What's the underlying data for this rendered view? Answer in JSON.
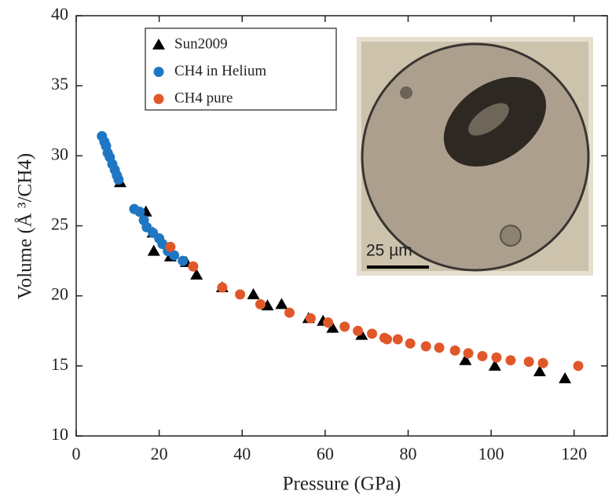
{
  "chart_data": {
    "type": "scatter",
    "xlabel": "Pressure (GPa)",
    "ylabel": "Volume (Å ³/CH4)",
    "inset_label": "25 µm",
    "xlim": [
      0,
      128
    ],
    "ylim": [
      10,
      40
    ],
    "xticks": [
      0,
      20,
      40,
      60,
      80,
      100,
      120
    ],
    "yticks": [
      10,
      15,
      20,
      25,
      30,
      35,
      40
    ],
    "legend": "upper left",
    "series": [
      {
        "name": "Sun2009",
        "color": "#000000",
        "marker": "triangle",
        "x": [
          10.6,
          16.8,
          18.5,
          18.7,
          22.7,
          26.5,
          29,
          35.2,
          42.7,
          46.1,
          49.5,
          56,
          59.5,
          61.8,
          68.8,
          93.8,
          100.9,
          111.7,
          117.8
        ],
        "values": [
          28.1,
          26.0,
          24.5,
          23.2,
          22.8,
          22.4,
          21.5,
          20.6,
          20.1,
          19.3,
          19.4,
          18.4,
          18.2,
          17.7,
          17.2,
          15.4,
          15.0,
          14.6,
          14.1
        ]
      },
      {
        "name": "CH4 in Helium",
        "color": "#1f77c4",
        "marker": "circle",
        "x": [
          6.2,
          6.8,
          7.2,
          7.6,
          8.1,
          8.7,
          9.3,
          9.8,
          10.2,
          14.0,
          15.3,
          16.3,
          17.0,
          18.5,
          20.0,
          20.8,
          22.1,
          23.6,
          25.7
        ],
        "values": [
          31.4,
          31.0,
          30.7,
          30.2,
          29.9,
          29.4,
          29.0,
          28.6,
          28.3,
          26.2,
          26.0,
          25.4,
          24.9,
          24.5,
          24.1,
          23.7,
          23.2,
          22.9,
          22.5
        ]
      },
      {
        "name": "CH4 pure",
        "color": "#e0582a",
        "marker": "circle",
        "x": [
          22.7,
          28.2,
          35.2,
          39.5,
          44.4,
          51.4,
          56.5,
          60.7,
          64.7,
          67.9,
          71.3,
          74.3,
          74.9,
          77.5,
          80.5,
          84.3,
          87.5,
          91.3,
          94.5,
          97.9,
          101.3,
          104.7,
          109.1,
          112.5,
          121
        ],
        "values": [
          23.5,
          22.1,
          20.6,
          20.1,
          19.4,
          18.8,
          18.4,
          18.1,
          17.8,
          17.5,
          17.3,
          17.0,
          16.9,
          16.9,
          16.6,
          16.4,
          16.3,
          16.1,
          15.9,
          15.7,
          15.6,
          15.4,
          15.3,
          15.2,
          15.0
        ]
      }
    ]
  }
}
